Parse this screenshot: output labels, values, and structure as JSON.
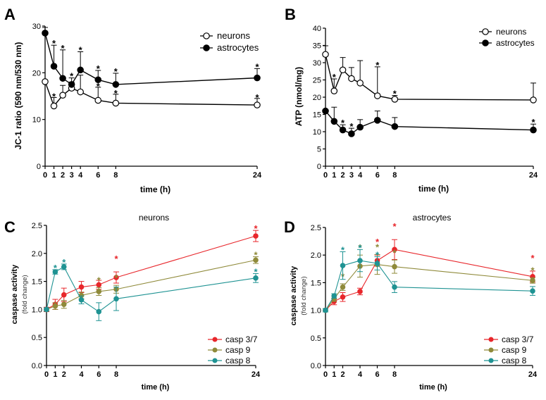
{
  "colors": {
    "axis": "#000000",
    "neurons_fill": "#ffffff",
    "astro_fill": "#000000",
    "casp37": "#e8262b",
    "casp9": "#8f8a3a",
    "casp8": "#1f9393"
  },
  "chart_data": [
    {
      "panel": "A",
      "type": "line",
      "title": "",
      "xlabel": "time (h)",
      "ylabel": "JC-1 ratio (590 nm/530 nm)",
      "ylim": [
        0,
        30
      ],
      "yticks": [
        0,
        10,
        20,
        30
      ],
      "xticks": [
        0,
        1,
        2,
        3,
        4,
        6,
        8,
        24
      ],
      "legend_position": "top-right",
      "series": [
        {
          "name": "neurons",
          "marker": "open",
          "x": [
            0,
            1,
            2,
            3,
            4,
            6,
            8,
            24
          ],
          "y": [
            18.1,
            12.9,
            15.2,
            16.7,
            15.9,
            14.1,
            13.5,
            13.1
          ],
          "err": [
            0,
            1.8,
            2.1,
            1.3,
            3.6,
            2.8,
            1.9,
            1.4
          ],
          "stars": [
            "",
            "*",
            "",
            "",
            "",
            "*",
            "*",
            "*"
          ]
        },
        {
          "name": "astrocytes",
          "marker": "filled",
          "x": [
            0,
            1,
            2,
            3,
            4,
            6,
            8,
            24
          ],
          "y": [
            28.5,
            21.4,
            18.8,
            17.5,
            20.6,
            18.5,
            17.5,
            18.9
          ],
          "err": [
            1.2,
            4.5,
            6.1,
            1.4,
            3.9,
            2.0,
            2.4,
            2.0
          ],
          "stars": [
            "",
            "*",
            "*",
            "*",
            "*",
            "*",
            "*",
            "*"
          ]
        }
      ]
    },
    {
      "panel": "B",
      "type": "line",
      "title": "",
      "xlabel": "time (h)",
      "ylabel": "ATP (nmol/mg)",
      "ylim": [
        0,
        40
      ],
      "yticks": [
        0,
        5,
        10,
        15,
        20,
        25,
        30,
        35,
        40
      ],
      "xticks": [
        0,
        1,
        2,
        3,
        4,
        6,
        8,
        24
      ],
      "legend_position": "top-right",
      "series": [
        {
          "name": "neurons",
          "marker": "open",
          "x": [
            0,
            1,
            2,
            3,
            4,
            6,
            8,
            24
          ],
          "y": [
            32.4,
            21.8,
            27.9,
            25.4,
            24.1,
            20.4,
            19.4,
            19.2
          ],
          "err": [
            2.5,
            3.5,
            3.6,
            3.2,
            6.5,
            8.4,
            1.1,
            4.9
          ],
          "stars": [
            "",
            "*",
            "",
            "",
            "",
            "*",
            "*",
            ""
          ]
        },
        {
          "name": "astrocytes",
          "marker": "filled",
          "x": [
            0,
            1,
            2,
            3,
            4,
            6,
            8,
            24
          ],
          "y": [
            16.0,
            13.0,
            10.5,
            9.4,
            11.3,
            13.3,
            11.5,
            10.5
          ],
          "err": [
            0,
            4.1,
            1.5,
            1.6,
            2.2,
            2.7,
            2.6,
            1.7
          ],
          "stars": [
            "",
            "",
            "*",
            "*",
            "",
            "",
            "",
            "*"
          ]
        }
      ]
    },
    {
      "panel": "C",
      "type": "line",
      "title": "neurons",
      "xlabel": "time (h)",
      "ylabel": "caspase activity",
      "ylabel2": "(fold change)",
      "ylim": [
        0,
        2.5
      ],
      "yticks": [
        0.0,
        0.5,
        1.0,
        1.5,
        2.0,
        2.5
      ],
      "xticks": [
        0,
        1,
        2,
        4,
        6,
        8,
        24
      ],
      "legend_position": "bottom-right",
      "series": [
        {
          "name": "casp 3/7",
          "color_key": "casp37",
          "x": [
            0,
            1,
            2,
            4,
            6,
            8,
            24
          ],
          "y": [
            1.0,
            1.09,
            1.26,
            1.4,
            1.44,
            1.57,
            2.31
          ],
          "err": [
            0.04,
            0.09,
            0.12,
            0.1,
            0.08,
            0.1,
            0.1
          ],
          "stars": [
            "",
            "",
            "",
            "",
            "",
            "*",
            "*"
          ]
        },
        {
          "name": "casp 9",
          "color_key": "casp9",
          "x": [
            0,
            1,
            2,
            4,
            6,
            8,
            24
          ],
          "y": [
            1.0,
            1.06,
            1.09,
            1.25,
            1.32,
            1.36,
            1.88
          ],
          "err": [
            0.03,
            0.06,
            0.07,
            0.06,
            0.07,
            0.07,
            0.06
          ],
          "stars": [
            "",
            "",
            "",
            "",
            "*",
            "*",
            "*"
          ]
        },
        {
          "name": "casp 8",
          "color_key": "casp8",
          "x": [
            0,
            1,
            2,
            4,
            6,
            8,
            24
          ],
          "y": [
            1.0,
            1.67,
            1.76,
            1.17,
            0.96,
            1.19,
            1.56
          ],
          "err": [
            0.03,
            0.04,
            0.05,
            0.07,
            0.16,
            0.21,
            0.08
          ],
          "stars": [
            "",
            "*",
            "*",
            "",
            "",
            "",
            "*"
          ]
        }
      ]
    },
    {
      "panel": "D",
      "type": "line",
      "title": "astrocytes",
      "xlabel": "time (h)",
      "ylabel": "caspase activity",
      "ylabel2": "(fold change)",
      "ylim": [
        0,
        2.5
      ],
      "yticks": [
        0.0,
        0.5,
        1.0,
        1.5,
        2.0,
        2.5
      ],
      "xticks": [
        0,
        1,
        2,
        4,
        6,
        8,
        24
      ],
      "legend_position": "bottom-right",
      "series": [
        {
          "name": "casp 3/7",
          "color_key": "casp37",
          "x": [
            0,
            1,
            2,
            4,
            6,
            8,
            24
          ],
          "y": [
            1.0,
            1.16,
            1.24,
            1.34,
            1.9,
            2.1,
            1.61
          ],
          "err": [
            0.03,
            0.06,
            0.08,
            0.06,
            0.1,
            0.18,
            0.1
          ],
          "stars": [
            "",
            "",
            "",
            "",
            "*",
            "*",
            "*"
          ]
        },
        {
          "name": "casp 9",
          "color_key": "casp9",
          "x": [
            0,
            1,
            2,
            4,
            6,
            8,
            24
          ],
          "y": [
            1.0,
            1.21,
            1.42,
            1.8,
            1.83,
            1.79,
            1.54
          ],
          "err": [
            0.03,
            0.05,
            0.06,
            0.2,
            0.18,
            0.12,
            0.05
          ],
          "stars": [
            "",
            "",
            "*",
            "*",
            "*",
            "*",
            "*"
          ]
        },
        {
          "name": "casp 8",
          "color_key": "casp8",
          "x": [
            0,
            1,
            2,
            4,
            6,
            8,
            24
          ],
          "y": [
            1.0,
            1.26,
            1.81,
            1.9,
            1.85,
            1.42,
            1.35
          ],
          "err": [
            0.03,
            0.04,
            0.25,
            0.2,
            0.12,
            0.1,
            0.08
          ],
          "stars": [
            "",
            "",
            "*",
            "*",
            "*",
            "",
            ""
          ]
        }
      ]
    }
  ]
}
